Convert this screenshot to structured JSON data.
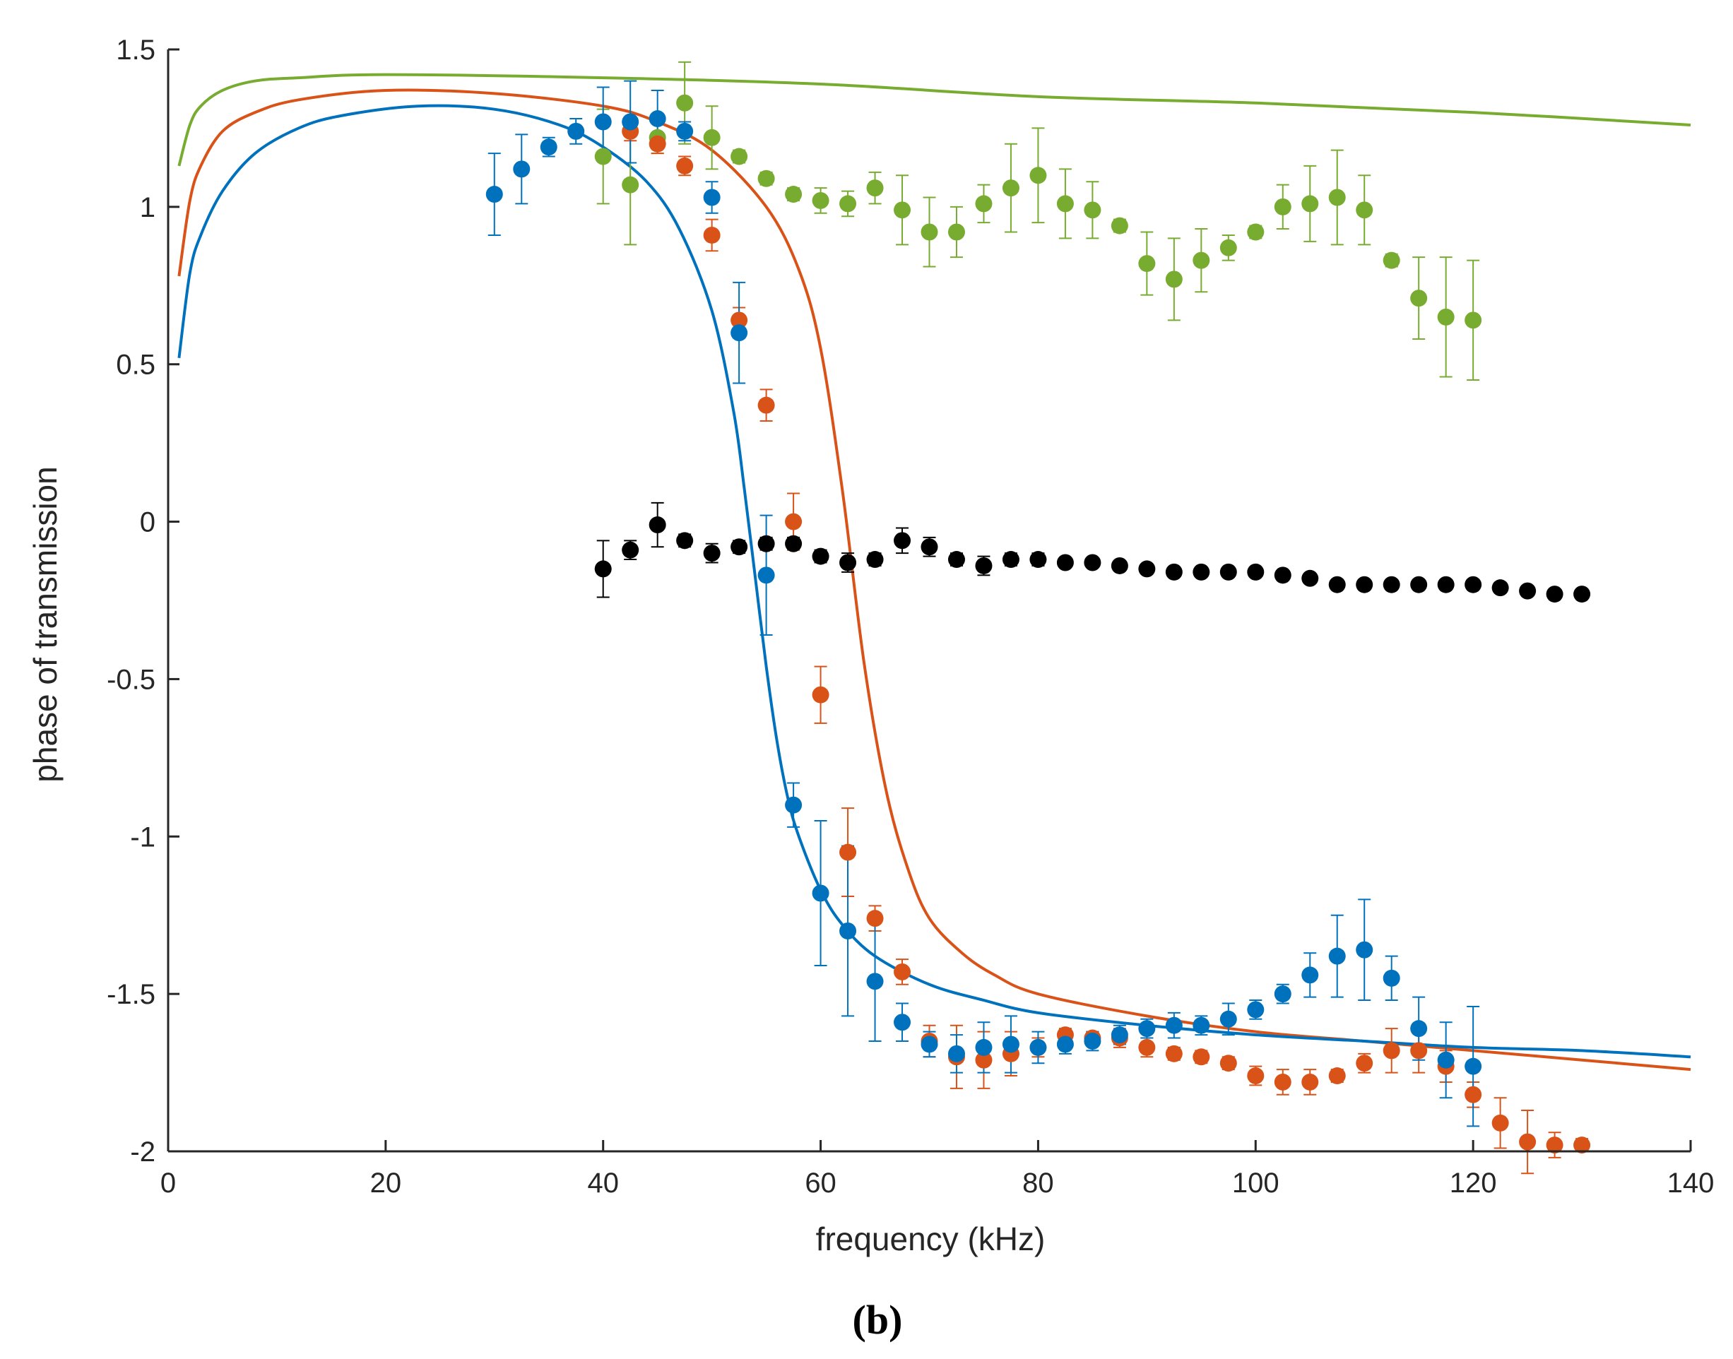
{
  "figure": {
    "caption": "(b)"
  },
  "chart_data": {
    "type": "scatter",
    "title": "",
    "xlabel": "frequency (kHz)",
    "ylabel": "phase of transmission",
    "xlim": [
      0,
      140
    ],
    "ylim": [
      -2,
      1.5
    ],
    "xticks": [
      0,
      20,
      40,
      60,
      80,
      100,
      120,
      140
    ],
    "yticks": [
      -2,
      -1.5,
      -1,
      -0.5,
      0,
      0.5,
      1,
      1.5
    ],
    "xtick_labels": [
      "0",
      "20",
      "40",
      "60",
      "80",
      "100",
      "120",
      "140"
    ],
    "ytick_labels": [
      "-2",
      "-1.5",
      "-1",
      "-0.5",
      "0",
      "0.5",
      "1",
      "1.5"
    ],
    "grid": false,
    "colors": {
      "blue": "#0072BD",
      "orange": "#D95319",
      "green": "#77AC30",
      "black": "#000000",
      "axes": "#262626"
    },
    "series": [
      {
        "name": "green-data",
        "color": "#77AC30",
        "x": [
          40,
          42.5,
          45,
          47.5,
          50,
          52.5,
          55,
          57.5,
          60,
          62.5,
          65,
          67.5,
          70,
          72.5,
          75,
          77.5,
          80,
          82.5,
          85,
          87.5,
          90,
          92.5,
          95,
          97.5,
          100,
          102.5,
          105,
          107.5,
          110,
          112.5,
          115,
          117.5,
          120
        ],
        "y": [
          1.16,
          1.07,
          1.22,
          1.33,
          1.22,
          1.16,
          1.09,
          1.04,
          1.02,
          1.01,
          1.06,
          0.99,
          0.92,
          0.92,
          1.01,
          1.06,
          1.1,
          1.01,
          0.99,
          0.94,
          0.82,
          0.77,
          0.83,
          0.87,
          0.92,
          1.0,
          1.01,
          1.03,
          0.99,
          0.83,
          0.71,
          0.65,
          0.64
        ],
        "err": [
          0.15,
          0.19,
          0.05,
          0.13,
          0.1,
          0.02,
          0.02,
          0.02,
          0.04,
          0.04,
          0.05,
          0.11,
          0.11,
          0.08,
          0.06,
          0.14,
          0.15,
          0.11,
          0.09,
          0.02,
          0.1,
          0.13,
          0.1,
          0.04,
          0.02,
          0.07,
          0.12,
          0.15,
          0.11,
          0.02,
          0.13,
          0.19,
          0.19
        ]
      },
      {
        "name": "black-data",
        "color": "#000000",
        "x": [
          40,
          42.5,
          45,
          47.5,
          50,
          52.5,
          55,
          57.5,
          60,
          62.5,
          65,
          67.5,
          70,
          72.5,
          75,
          77.5,
          80,
          82.5,
          85,
          87.5,
          90,
          92.5,
          95,
          97.5,
          100,
          102.5,
          105,
          107.5,
          110,
          112.5,
          115,
          117.5,
          120,
          122.5,
          125,
          127.5,
          130
        ],
        "y": [
          -0.15,
          -0.09,
          -0.01,
          -0.06,
          -0.1,
          -0.08,
          -0.07,
          -0.07,
          -0.11,
          -0.13,
          -0.12,
          -0.06,
          -0.08,
          -0.12,
          -0.14,
          -0.12,
          -0.12,
          -0.13,
          -0.13,
          -0.14,
          -0.15,
          -0.16,
          -0.16,
          -0.16,
          -0.16,
          -0.17,
          -0.18,
          -0.2,
          -0.2,
          -0.2,
          -0.2,
          -0.2,
          -0.2,
          -0.21,
          -0.22,
          -0.23,
          -0.23
        ],
        "err": [
          0.09,
          0.03,
          0.07,
          0.02,
          0.03,
          0.02,
          0.02,
          0.02,
          0.02,
          0.03,
          0.02,
          0.04,
          0.03,
          0.02,
          0.03,
          0.02,
          0.02,
          0.01,
          0.01,
          0.01,
          0.01,
          0.01,
          0.01,
          0.01,
          0.01,
          0.01,
          0.01,
          0.01,
          0.01,
          0.01,
          0.01,
          0.01,
          0.01,
          0.01,
          0.01,
          0.01,
          0.01
        ]
      },
      {
        "name": "orange-data",
        "color": "#D95319",
        "x": [
          42.5,
          45,
          47.5,
          50,
          52.5,
          55,
          57.5,
          60,
          62.5,
          65,
          67.5,
          70,
          72.5,
          75,
          77.5,
          80,
          82.5,
          85,
          87.5,
          90,
          92.5,
          95,
          97.5,
          100,
          102.5,
          105,
          107.5,
          110,
          112.5,
          115,
          117.5,
          120,
          122.5,
          125,
          127.5,
          130
        ],
        "y": [
          1.24,
          1.2,
          1.13,
          0.91,
          0.64,
          0.37,
          0.0,
          -0.55,
          -1.05,
          -1.26,
          -1.43,
          -1.65,
          -1.7,
          -1.71,
          -1.69,
          -1.67,
          -1.63,
          -1.64,
          -1.64,
          -1.67,
          -1.69,
          -1.7,
          -1.72,
          -1.76,
          -1.78,
          -1.78,
          -1.76,
          -1.72,
          -1.68,
          -1.68,
          -1.73,
          -1.82,
          -1.91,
          -1.97,
          -1.98,
          -1.98
        ],
        "err": [
          0.03,
          0.03,
          0.03,
          0.05,
          0.04,
          0.05,
          0.09,
          0.09,
          0.14,
          0.04,
          0.04,
          0.05,
          0.1,
          0.09,
          0.07,
          0.03,
          0.02,
          0.02,
          0.03,
          0.03,
          0.02,
          0.02,
          0.02,
          0.03,
          0.04,
          0.04,
          0.02,
          0.03,
          0.07,
          0.07,
          0.05,
          0.04,
          0.08,
          0.1,
          0.04,
          0.02
        ]
      },
      {
        "name": "blue-data",
        "color": "#0072BD",
        "x": [
          30,
          32.5,
          35,
          37.5,
          40,
          42.5,
          45,
          47.5,
          50,
          52.5,
          55,
          57.5,
          60,
          62.5,
          65,
          67.5,
          70,
          72.5,
          75,
          77.5,
          80,
          82.5,
          85,
          87.5,
          90,
          92.5,
          95,
          97.5,
          100,
          102.5,
          105,
          107.5,
          110,
          112.5,
          115,
          117.5,
          120
        ],
        "y": [
          1.04,
          1.12,
          1.19,
          1.24,
          1.27,
          1.27,
          1.28,
          1.24,
          1.03,
          0.6,
          -0.17,
          -0.9,
          -1.18,
          -1.3,
          -1.46,
          -1.59,
          -1.66,
          -1.69,
          -1.67,
          -1.66,
          -1.67,
          -1.66,
          -1.65,
          -1.63,
          -1.61,
          -1.6,
          -1.6,
          -1.58,
          -1.55,
          -1.5,
          -1.44,
          -1.38,
          -1.36,
          -1.45,
          -1.61,
          -1.71,
          -1.73
        ],
        "err": [
          0.13,
          0.11,
          0.03,
          0.04,
          0.11,
          0.13,
          0.09,
          0.03,
          0.05,
          0.16,
          0.19,
          0.07,
          0.23,
          0.27,
          0.19,
          0.06,
          0.04,
          0.06,
          0.08,
          0.09,
          0.05,
          0.03,
          0.03,
          0.03,
          0.03,
          0.04,
          0.03,
          0.05,
          0.03,
          0.03,
          0.07,
          0.13,
          0.16,
          0.07,
          0.1,
          0.12,
          0.19
        ]
      }
    ],
    "curves": [
      {
        "name": "green-fit",
        "color": "#77AC30",
        "x": [
          1,
          2,
          3,
          5,
          8,
          12,
          20,
          40,
          60,
          80,
          100,
          120,
          140
        ],
        "y": [
          1.13,
          1.26,
          1.32,
          1.37,
          1.4,
          1.41,
          1.42,
          1.41,
          1.39,
          1.35,
          1.33,
          1.3,
          1.26
        ]
      },
      {
        "name": "orange-fit",
        "color": "#D95319",
        "x": [
          1,
          2,
          3,
          5,
          8,
          12,
          20,
          30,
          40,
          45,
          50,
          55,
          58,
          60,
          62,
          64,
          66,
          68,
          70,
          73,
          76,
          80,
          90,
          100,
          110,
          120,
          130,
          140
        ],
        "y": [
          0.78,
          1.02,
          1.13,
          1.24,
          1.3,
          1.34,
          1.37,
          1.36,
          1.32,
          1.27,
          1.18,
          1.0,
          0.8,
          0.55,
          0.1,
          -0.45,
          -0.85,
          -1.1,
          -1.26,
          -1.37,
          -1.44,
          -1.5,
          -1.57,
          -1.62,
          -1.65,
          -1.68,
          -1.71,
          -1.74
        ]
      },
      {
        "name": "blue-fit",
        "color": "#0072BD",
        "x": [
          1,
          2,
          3,
          5,
          8,
          12,
          16,
          23,
          30,
          36,
          40,
          44,
          47,
          50,
          52,
          53,
          54,
          55,
          56,
          57,
          58,
          60,
          62,
          65,
          70,
          75,
          80,
          90,
          100,
          110,
          120,
          130,
          140
        ],
        "y": [
          0.52,
          0.79,
          0.91,
          1.05,
          1.17,
          1.25,
          1.29,
          1.32,
          1.31,
          1.26,
          1.19,
          1.08,
          0.93,
          0.67,
          0.35,
          0.1,
          -0.18,
          -0.46,
          -0.7,
          -0.88,
          -1.0,
          -1.17,
          -1.28,
          -1.38,
          -1.47,
          -1.52,
          -1.56,
          -1.6,
          -1.63,
          -1.65,
          -1.67,
          -1.68,
          -1.7
        ]
      }
    ]
  }
}
